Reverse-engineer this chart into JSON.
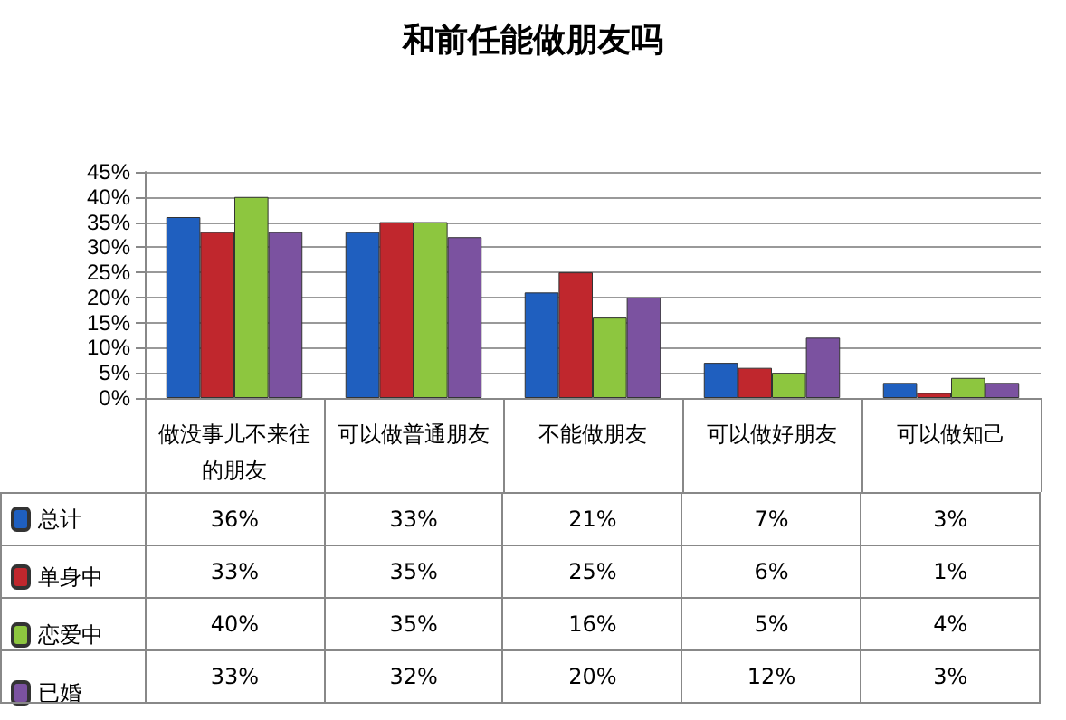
{
  "chart_data": {
    "type": "bar",
    "title": "和前任能做朋友吗",
    "categories": [
      "做没事儿不来往的朋友",
      "可以做普通朋友",
      "不能做朋友",
      "可以做好朋友",
      "可以做知己"
    ],
    "series": [
      {
        "name": "总计",
        "color": "#1f5fbf",
        "values": [
          36,
          33,
          21,
          7,
          3
        ],
        "value_labels": [
          "36%",
          "33%",
          "21%",
          "7%",
          "3%"
        ]
      },
      {
        "name": "单身中",
        "color": "#c0272d",
        "values": [
          33,
          35,
          25,
          6,
          1
        ],
        "value_labels": [
          "33%",
          "35%",
          "25%",
          "6%",
          "1%"
        ]
      },
      {
        "name": "恋爱中",
        "color": "#8dc63f",
        "values": [
          40,
          35,
          16,
          5,
          4
        ],
        "value_labels": [
          "40%",
          "35%",
          "16%",
          "5%",
          "4%"
        ]
      },
      {
        "name": "已婚",
        "color": "#7b52a0",
        "values": [
          33,
          32,
          20,
          12,
          3
        ],
        "value_labels": [
          "33%",
          "32%",
          "20%",
          "12%",
          "3%"
        ]
      }
    ],
    "ylim": [
      0,
      45
    ],
    "yticks": [
      {
        "value": 0,
        "label": "0%"
      },
      {
        "value": 5,
        "label": "5%"
      },
      {
        "value": 10,
        "label": "10%"
      },
      {
        "value": 15,
        "label": "15%"
      },
      {
        "value": 20,
        "label": "20%"
      },
      {
        "value": 25,
        "label": "25%"
      },
      {
        "value": 30,
        "label": "30%"
      },
      {
        "value": 35,
        "label": "35%"
      },
      {
        "value": 40,
        "label": "40%"
      },
      {
        "value": 45,
        "label": "45%"
      }
    ],
    "grid": "y",
    "legend": "bottom left"
  }
}
